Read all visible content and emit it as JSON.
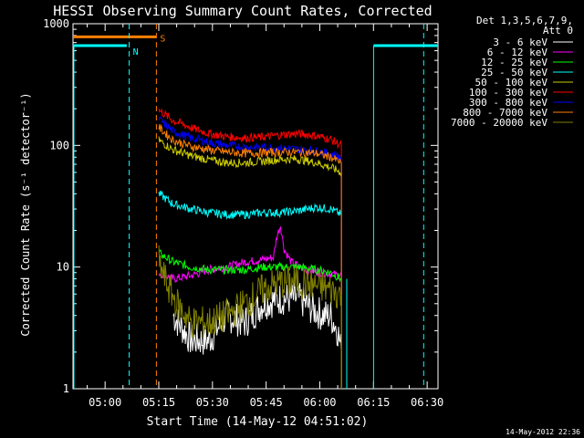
{
  "chart_data": {
    "type": "line",
    "title": "HESSI Observing Summary Count Rates, Corrected",
    "xlabel": "Start Time (14-May-12 04:51:02)",
    "ylabel": "Corrected Count Rate (s⁻¹ detector⁻¹)",
    "y_scale": "log",
    "ylim": [
      1,
      1000
    ],
    "x_unit": "minutes after 04:51:02 UT",
    "xlim": [
      0,
      102
    ],
    "x_ticks": [
      {
        "label": "05:00",
        "t": 8.97
      },
      {
        "label": "05:15",
        "t": 23.97
      },
      {
        "label": "05:30",
        "t": 38.97
      },
      {
        "label": "05:45",
        "t": 53.97
      },
      {
        "label": "06:00",
        "t": 68.97
      },
      {
        "label": "06:15",
        "t": 83.97
      },
      {
        "label": "06:30",
        "t": 98.97
      }
    ],
    "y_ticks": [
      {
        "label": "1",
        "v": 1
      },
      {
        "label": "10",
        "v": 10
      },
      {
        "label": "100",
        "v": 100
      },
      {
        "label": "1000",
        "v": 1000
      }
    ],
    "legend_header": [
      "Det 1,3,5,6,7,9,",
      "Att 0"
    ],
    "legend_position": "right",
    "series": [
      {
        "name": "3 - 6 keV",
        "color": "#ffffff",
        "points": [
          [
            28,
            4.0
          ],
          [
            33,
            2.5
          ],
          [
            38,
            2.5
          ],
          [
            43,
            4.0
          ],
          [
            48,
            3.5
          ],
          [
            53,
            5.0
          ],
          [
            58,
            5.5
          ],
          [
            63,
            5.5
          ],
          [
            67,
            4.5
          ],
          [
            70,
            4.0
          ],
          [
            72,
            4.0
          ],
          [
            74,
            3.0
          ],
          [
            75,
            2.0
          ]
        ]
      },
      {
        "name": "6 - 12 keV",
        "color": "#ff00ff",
        "points": [
          [
            24,
            9.0
          ],
          [
            28,
            8.0
          ],
          [
            33,
            8.5
          ],
          [
            38,
            9.5
          ],
          [
            43,
            10.0
          ],
          [
            48,
            11.0
          ],
          [
            53,
            11.5
          ],
          [
            56,
            12.0
          ],
          [
            57,
            18.0
          ],
          [
            58,
            22.0
          ],
          [
            59,
            14.0
          ],
          [
            61,
            11.0
          ],
          [
            65,
            9.5
          ],
          [
            70,
            9.0
          ],
          [
            75,
            8.5
          ]
        ]
      },
      {
        "name": "12 - 25 keV",
        "color": "#00ff00",
        "points": [
          [
            24,
            13.0
          ],
          [
            28,
            11.0
          ],
          [
            33,
            10.0
          ],
          [
            38,
            9.5
          ],
          [
            43,
            9.5
          ],
          [
            48,
            9.5
          ],
          [
            53,
            10.0
          ],
          [
            58,
            10.0
          ],
          [
            63,
            10.0
          ],
          [
            68,
            9.5
          ],
          [
            72,
            9.0
          ],
          [
            75,
            8.0
          ]
        ]
      },
      {
        "name": "25 - 50 keV",
        "color": "#00ffff",
        "points": [
          [
            24,
            40.0
          ],
          [
            28,
            33.0
          ],
          [
            33,
            30.0
          ],
          [
            38,
            28.0
          ],
          [
            43,
            27.0
          ],
          [
            48,
            27.0
          ],
          [
            53,
            28.0
          ],
          [
            58,
            28.0
          ],
          [
            63,
            29.0
          ],
          [
            68,
            31.0
          ],
          [
            72,
            30.0
          ],
          [
            75,
            27.0
          ]
        ]
      },
      {
        "name": "50 - 100 keV",
        "color": "#cccc00",
        "points": [
          [
            24,
            110.0
          ],
          [
            28,
            92.0
          ],
          [
            33,
            82.0
          ],
          [
            38,
            76.0
          ],
          [
            43,
            72.0
          ],
          [
            48,
            72.0
          ],
          [
            53,
            74.0
          ],
          [
            58,
            77.0
          ],
          [
            63,
            77.0
          ],
          [
            68,
            72.0
          ],
          [
            72,
            66.0
          ],
          [
            75,
            60.0
          ]
        ]
      },
      {
        "name": "100 - 300 keV",
        "color": "#ff0000",
        "points": [
          [
            24,
            195.0
          ],
          [
            28,
            160.0
          ],
          [
            33,
            140.0
          ],
          [
            38,
            125.0
          ],
          [
            43,
            118.0
          ],
          [
            48,
            115.0
          ],
          [
            53,
            117.0
          ],
          [
            58,
            122.0
          ],
          [
            63,
            125.0
          ],
          [
            68,
            120.0
          ],
          [
            72,
            112.0
          ],
          [
            75,
            100.0
          ]
        ]
      },
      {
        "name": "300 - 800 keV",
        "color": "#0000ff",
        "points": [
          [
            24,
            165.0
          ],
          [
            28,
            130.0
          ],
          [
            33,
            115.0
          ],
          [
            38,
            106.0
          ],
          [
            43,
            100.0
          ],
          [
            48,
            97.0
          ],
          [
            53,
            96.0
          ],
          [
            58,
            95.0
          ],
          [
            63,
            93.0
          ],
          [
            68,
            90.0
          ],
          [
            72,
            85.0
          ],
          [
            75,
            80.0
          ]
        ]
      },
      {
        "name": "800 - 7000 keV",
        "color": "#ff8000",
        "points": [
          [
            24,
            140.0
          ],
          [
            28,
            110.0
          ],
          [
            33,
            98.0
          ],
          [
            38,
            92.0
          ],
          [
            43,
            88.0
          ],
          [
            48,
            86.0
          ],
          [
            53,
            87.0
          ],
          [
            58,
            88.0
          ],
          [
            63,
            88.0
          ],
          [
            68,
            86.0
          ],
          [
            72,
            80.0
          ],
          [
            75,
            72.0
          ]
        ]
      },
      {
        "name": "7000 - 20000 keV",
        "color": "#808000",
        "points": [
          [
            24,
            11.0
          ],
          [
            26,
            7.5
          ],
          [
            29,
            5.0
          ],
          [
            33,
            3.5
          ],
          [
            38,
            3.5
          ],
          [
            43,
            4.0
          ],
          [
            48,
            5.0
          ],
          [
            53,
            6.5
          ],
          [
            58,
            7.5
          ],
          [
            63,
            7.5
          ],
          [
            68,
            7.0
          ],
          [
            72,
            6.5
          ],
          [
            75,
            6.0
          ]
        ]
      }
    ],
    "markers": [
      {
        "label": "N",
        "color": "#00ffff",
        "t": 15.7
      },
      {
        "label": "S",
        "color": "#ff8000",
        "t": 23.3
      }
    ],
    "night_level": 660,
    "saa_level": 780,
    "footer_date": "14-May-2012 22:36"
  }
}
